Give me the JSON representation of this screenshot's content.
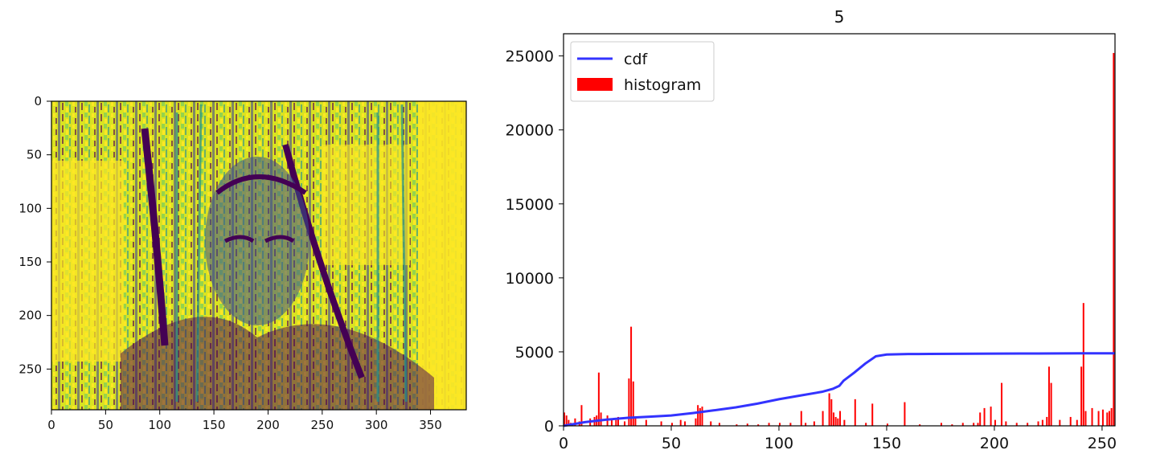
{
  "colors": {
    "viridis_dark": "#440154",
    "viridis_blue": "#3b528b",
    "viridis_teal": "#21918c",
    "viridis_green": "#5ec962",
    "viridis_yellow": "#fde725",
    "hist": "#ff0000",
    "cdf": "#3333ff"
  },
  "chart_data": [
    {
      "type": "heatmap",
      "description_colormap": "viridis",
      "xlim": [
        0,
        383
      ],
      "ylim": [
        288,
        0
      ],
      "xticks": [
        0,
        50,
        100,
        150,
        200,
        250,
        300,
        350
      ],
      "yticks": [
        0,
        50,
        100,
        150,
        200,
        250
      ],
      "xtick_labels": [
        "0",
        "50",
        "100",
        "150",
        "200",
        "250",
        "300",
        "350"
      ],
      "ytick_labels": [
        "0",
        "50",
        "100",
        "150",
        "200",
        "250"
      ]
    },
    {
      "type": "bar",
      "title": "5",
      "xlim": [
        0,
        256
      ],
      "ylim": [
        0,
        26500
      ],
      "xticks": [
        0,
        50,
        100,
        150,
        200,
        250
      ],
      "yticks": [
        0,
        5000,
        10000,
        15000,
        20000,
        25000
      ],
      "xtick_labels": [
        "0",
        "50",
        "100",
        "150",
        "200",
        "250"
      ],
      "ytick_labels": [
        "0",
        "5000",
        "10000",
        "15000",
        "20000",
        "25000"
      ],
      "legend": {
        "placement": "upper-left",
        "entries": [
          "cdf",
          "histogram"
        ]
      },
      "histogram": {
        "x": [
          0,
          1,
          2,
          3,
          5,
          7,
          8,
          12,
          14,
          15,
          16,
          17,
          20,
          22,
          24,
          25,
          28,
          30,
          31,
          32,
          33,
          38,
          45,
          50,
          54,
          56,
          61,
          62,
          63,
          64,
          68,
          72,
          80,
          85,
          90,
          95,
          100,
          105,
          110,
          112,
          116,
          120,
          123,
          124,
          125,
          126,
          127,
          128,
          130,
          135,
          140,
          143,
          150,
          158,
          165,
          175,
          180,
          185,
          190,
          192,
          193,
          195,
          198,
          200,
          203,
          205,
          210,
          215,
          220,
          222,
          224,
          225,
          226,
          230,
          235,
          238,
          240,
          241,
          242,
          245,
          248,
          250,
          252,
          253,
          254,
          255
        ],
        "values": [
          900,
          700,
          400,
          200,
          500,
          300,
          1400,
          500,
          600,
          700,
          3600,
          900,
          700,
          500,
          400,
          600,
          300,
          3200,
          6700,
          3000,
          500,
          400,
          300,
          200,
          400,
          300,
          500,
          1400,
          1200,
          1300,
          300,
          200,
          100,
          150,
          100,
          200,
          200,
          200,
          1000,
          200,
          300,
          1000,
          2200,
          1800,
          900,
          600,
          500,
          1000,
          400,
          1800,
          200,
          1500,
          150,
          1600,
          100,
          200,
          100,
          200,
          200,
          200,
          900,
          1200,
          1300,
          400,
          2900,
          300,
          200,
          200,
          300,
          400,
          600,
          4000,
          2900,
          400,
          600,
          400,
          4000,
          8300,
          1000,
          1200,
          1000,
          1100,
          900,
          1000,
          1200,
          25200
        ]
      },
      "cdf": {
        "x": [
          0,
          10,
          20,
          30,
          40,
          50,
          60,
          70,
          80,
          90,
          100,
          110,
          120,
          125,
          128,
          130,
          135,
          140,
          145,
          150,
          160,
          170,
          180,
          200,
          220,
          240,
          250,
          256
        ],
        "values": [
          0,
          250,
          420,
          540,
          620,
          700,
          860,
          1050,
          1250,
          1500,
          1800,
          2050,
          2300,
          2500,
          2700,
          3050,
          3600,
          4200,
          4700,
          4820,
          4850,
          4860,
          4870,
          4880,
          4890,
          4900,
          4900,
          4900
        ]
      }
    }
  ]
}
